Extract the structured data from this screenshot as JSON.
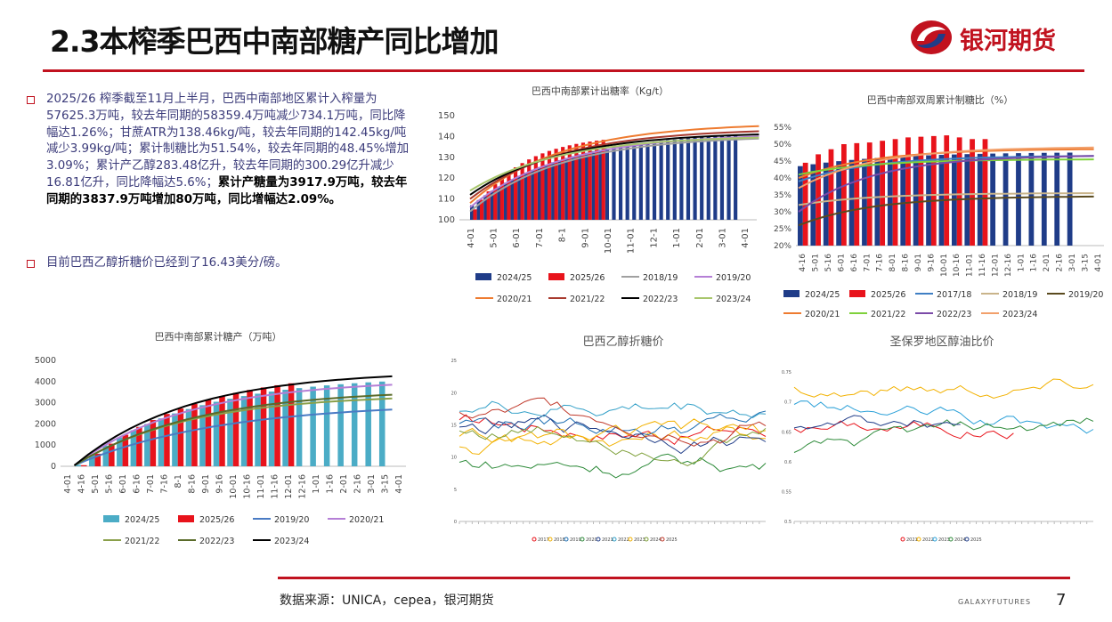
{
  "title": "2.3本榨季巴西中南部糖产同比增加",
  "logo": {
    "text": "银河期货"
  },
  "bullets": [
    {
      "text": "2025/26 榨季截至11月上半月，巴西中南部地区累计入榨量为57625.3万吨，较去年同期的58359.4万吨减少734.1万吨，同比降幅达1.26%；甘蔗ATR为138.46kg/吨，较去年同期的142.45kg/吨减少3.99kg/吨；累计制糖比为51.54%，较去年同期的48.45%增加3.09%；累计产乙醇283.48亿升，较去年同期的300.29亿升减少16.81亿升，同比降幅达5.6%；",
      "bold": "累计产糖量为3917.9万吨，较去年同期的3837.9万吨增加80万吨，同比增幅达2.09%。"
    },
    {
      "text": "目前巴西乙醇折糖价已经到了16.43美分/磅。",
      "bold": ""
    }
  ],
  "footer": {
    "source": "数据来源：UNICA，cepea，银河期货",
    "brand": "GALAXYFUTURES",
    "page": "7"
  },
  "charts": {
    "atr": {
      "title": "巴西中南部累计出糖率（Kg/t）",
      "ylim": [
        100,
        150
      ],
      "yticks": [
        "150",
        "140",
        "130",
        "120",
        "110",
        "100"
      ],
      "xticks": [
        "4-01",
        "5-01",
        "6-01",
        "7-01",
        "8-1",
        "9-01",
        "10-01",
        "11-01",
        "12-1",
        "1-01",
        "2-01",
        "3-01",
        "4-01"
      ],
      "legend": [
        {
          "name": "2024/25",
          "color": "#1f3c88",
          "kind": "bar"
        },
        {
          "name": "2025/26",
          "color": "#e8131b",
          "kind": "bar"
        },
        {
          "name": "2018/19",
          "color": "#a0a0a0",
          "kind": "line"
        },
        {
          "name": "2019/20",
          "color": "#b57fd6",
          "kind": "line"
        },
        {
          "name": "2020/21",
          "color": "#ee7b30",
          "kind": "line"
        },
        {
          "name": "2021/22",
          "color": "#a83a2e",
          "kind": "line"
        },
        {
          "name": "2022/23",
          "color": "#000000",
          "kind": "line"
        },
        {
          "name": "2023/24",
          "color": "#a8c66c",
          "kind": "line"
        }
      ]
    },
    "mix": {
      "title": "巴西中南部双周累计制糖比（%）",
      "ylim": [
        20,
        55
      ],
      "yticks": [
        "55%",
        "50%",
        "45%",
        "40%",
        "35%",
        "30%",
        "25%",
        "20%"
      ],
      "xticks": [
        "4-16",
        "5-01",
        "5-16",
        "6-01",
        "6-16",
        "7-01",
        "7-16",
        "8-01",
        "8-16",
        "9-01",
        "9-16",
        "10-01",
        "10-16",
        "11-01",
        "11-16",
        "12-01",
        "12-16",
        "1-01",
        "1-16",
        "2-01",
        "2-16",
        "3-01",
        "3-15",
        "4-01"
      ],
      "legend": [
        {
          "name": "2024/25",
          "color": "#1f3c88",
          "kind": "bar"
        },
        {
          "name": "2025/26",
          "color": "#e8131b",
          "kind": "bar"
        },
        {
          "name": "2017/18",
          "color": "#3f7fc4",
          "kind": "line"
        },
        {
          "name": "2018/19",
          "color": "#c9b48a",
          "kind": "line"
        },
        {
          "name": "2019/20",
          "color": "#5a4a1e",
          "kind": "line"
        },
        {
          "name": "2020/21",
          "color": "#ee7b30",
          "kind": "line"
        },
        {
          "name": "2021/22",
          "color": "#7fd13b",
          "kind": "line"
        },
        {
          "name": "2022/23",
          "color": "#7b4aa8",
          "kind": "line"
        },
        {
          "name": "2023/24",
          "color": "#f2a06b",
          "kind": "line"
        }
      ]
    },
    "sugar": {
      "title": "巴西中南部累计糖产（万吨）",
      "ylim": [
        0,
        5000
      ],
      "yticks": [
        "5000",
        "4000",
        "3000",
        "2000",
        "1000",
        "0"
      ],
      "xticks": [
        "4-01",
        "4-16",
        "5-01",
        "5-16",
        "6-01",
        "6-16",
        "7-01",
        "7-16",
        "8-1",
        "8-16",
        "9-01",
        "9-16",
        "10-01",
        "10-16",
        "11-01",
        "11-16",
        "12-01",
        "12-16",
        "1-01",
        "1-16",
        "2-01",
        "2-16",
        "3-01",
        "3-15",
        "4-01"
      ],
      "legend": [
        {
          "name": "2024/25",
          "color": "#4bacc6",
          "kind": "bar"
        },
        {
          "name": "2025/26",
          "color": "#e8131b",
          "kind": "bar"
        },
        {
          "name": "2019/20",
          "color": "#4a7bc4",
          "kind": "line"
        },
        {
          "name": "2020/21",
          "color": "#b57fd6",
          "kind": "line"
        },
        {
          "name": "2021/22",
          "color": "#8aa04a",
          "kind": "line"
        },
        {
          "name": "2022/23",
          "color": "#5a6b2a",
          "kind": "line"
        },
        {
          "name": "2023/24",
          "color": "#000000",
          "kind": "line"
        }
      ]
    },
    "ethanol": {
      "title": "巴西乙醇折糖价",
      "ylim": [
        0,
        26
      ],
      "yticks": [
        "25",
        "20",
        "15",
        "10",
        "5",
        "0"
      ],
      "legend": [
        "2017",
        "2018",
        "2019",
        "2020",
        "2021",
        "2022",
        "2023",
        "2024",
        "2025"
      ],
      "colors": [
        "#e8131b",
        "#f2b100",
        "#1f6fb2",
        "#2e8b3a",
        "#1f3c88",
        "#33a0c8",
        "#f2b100",
        "#7fa03a",
        "#c0392b"
      ]
    },
    "sp": {
      "title": "圣保罗地区醇油比价",
      "ylim": [
        0.5,
        0.78
      ],
      "yticks": [
        "0.75",
        "0.7",
        "0.65",
        "0.6",
        "0.55",
        "0.5"
      ],
      "legend": [
        "2021",
        "2022",
        "2023",
        "2024",
        "2025"
      ],
      "colors": [
        "#e8131b",
        "#f2b100",
        "#2aa0d8",
        "#2e8b3a",
        "#1f3c88"
      ]
    }
  }
}
